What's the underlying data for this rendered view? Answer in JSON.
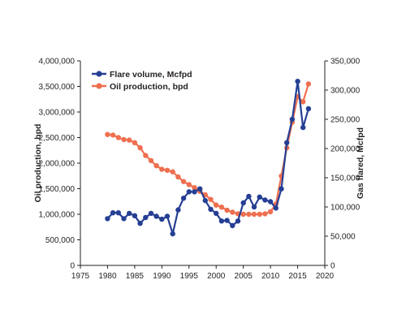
{
  "chart_data": {
    "type": "line",
    "xlabel": "",
    "ylabel": "Oil production, bpd",
    "y2label": "Gas flared, Mcfpd",
    "xlim": [
      1975,
      2020
    ],
    "ylim": [
      0,
      4000000
    ],
    "y2lim": [
      0,
      350000
    ],
    "x_ticks": [
      "1975",
      "1980",
      "1985",
      "1990",
      "1995",
      "2000",
      "2005",
      "2010",
      "2015",
      "2020"
    ],
    "y_ticks": [
      "0",
      "500,000",
      "1,000,000",
      "1,500,000",
      "2,000,000",
      "2,500,000",
      "3,000,000",
      "3,500,000",
      "4,000,000"
    ],
    "y2_ticks": [
      "0",
      "50,000",
      "100,000",
      "150,000",
      "200,000",
      "250,000",
      "300,000",
      "350,000"
    ],
    "legend_position": "top-left",
    "grid": false,
    "series": [
      {
        "name": "Flare volume, Mcfpd",
        "axis": "right",
        "color": "#253f94",
        "x": [
          1980,
          1981,
          1982,
          1983,
          1984,
          1985,
          1986,
          1987,
          1988,
          1989,
          1990,
          1991,
          1992,
          1993,
          1994,
          1995,
          1996,
          1997,
          1998,
          1999,
          2000,
          2001,
          2002,
          2003,
          2004,
          2005,
          2006,
          2007,
          2008,
          2009,
          2010,
          2011,
          2012,
          2013,
          2014,
          2015,
          2016,
          2017
        ],
        "values": [
          80000,
          90000,
          90000,
          80000,
          89000,
          85000,
          72000,
          82000,
          89000,
          84000,
          79000,
          84000,
          54000,
          95000,
          115000,
          126000,
          126000,
          131000,
          111000,
          96000,
          89000,
          76000,
          77000,
          68000,
          76000,
          107000,
          118000,
          100000,
          117000,
          112000,
          109000,
          98000,
          131000,
          210000,
          250000,
          315000,
          236000,
          268000
        ]
      },
      {
        "name": "Oil production, bpd",
        "axis": "left",
        "color": "#ef6f4f",
        "x": [
          1980,
          1981,
          1982,
          1983,
          1984,
          1985,
          1986,
          1987,
          1988,
          1989,
          1990,
          1991,
          1992,
          1993,
          1994,
          1995,
          1996,
          1997,
          1998,
          1999,
          2000,
          2001,
          2002,
          2003,
          2004,
          2005,
          2006,
          2007,
          2008,
          2009,
          2010,
          2011,
          2012,
          2013,
          2014,
          2015,
          2016,
          2017
        ],
        "values": [
          2560000,
          2550000,
          2500000,
          2460000,
          2450000,
          2400000,
          2300000,
          2150000,
          2050000,
          1950000,
          1880000,
          1860000,
          1830000,
          1730000,
          1640000,
          1580000,
          1520000,
          1450000,
          1380000,
          1290000,
          1180000,
          1140000,
          1080000,
          1040000,
          1010000,
          1000000,
          1000000,
          1000000,
          1000000,
          1010000,
          1050000,
          1200000,
          1750000,
          2300000,
          2800000,
          3300000,
          3200000,
          3550000
        ]
      }
    ]
  }
}
